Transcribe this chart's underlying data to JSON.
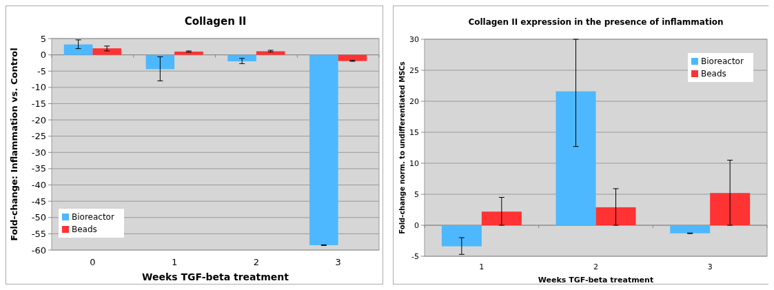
{
  "chart_data": [
    {
      "type": "bar",
      "title": "Collagen II",
      "xlabel": "Weeks TGF-beta treatment",
      "ylabel": "Fold-change: Inflammation vs. Control",
      "categories": [
        "0",
        "1",
        "2",
        "3"
      ],
      "ylim": [
        -60,
        5
      ],
      "yticks": [
        -60,
        -55,
        -50,
        -45,
        -40,
        -35,
        -30,
        -25,
        -20,
        -15,
        -10,
        -5,
        0,
        5
      ],
      "grid": "y",
      "legend": "bottom left",
      "series": [
        {
          "name": "Bioreactor",
          "color": "#4db8ff",
          "values": [
            3.2,
            -4.4,
            -2.0,
            -58.5
          ],
          "errors": [
            [
              1.9,
              4.6
            ],
            [
              -8.0,
              -0.6
            ],
            [
              -2.7,
              -1.1
            ],
            [
              -58.6,
              -58.4
            ]
          ]
        },
        {
          "name": "Beads",
          "color": "#ff3333",
          "values": [
            2.0,
            1.0,
            1.1,
            -1.9
          ],
          "errors": [
            [
              1.2,
              2.7
            ],
            [
              0.8,
              1.2
            ],
            [
              0.9,
              1.4
            ],
            [
              -2.0,
              -1.7
            ]
          ]
        }
      ]
    },
    {
      "type": "bar",
      "title": "Collagen II expression in the presence of inflammation",
      "xlabel": "Weeks TGF-beta treatment",
      "ylabel": "Fold-change norm. to undifferentiated MSCs",
      "categories": [
        "1",
        "2",
        "3"
      ],
      "ylim": [
        -5,
        30
      ],
      "yticks": [
        -5,
        0,
        5,
        10,
        15,
        20,
        25,
        30
      ],
      "grid": "y",
      "legend": "top right",
      "series": [
        {
          "name": "Bioreactor",
          "color": "#4db8ff",
          "values": [
            -3.4,
            21.6,
            -1.3
          ],
          "errors": [
            [
              -4.7,
              -2.0
            ],
            [
              12.7,
              30
            ],
            [
              -1.35,
              -1.25
            ]
          ]
        },
        {
          "name": "Beads",
          "color": "#ff3333",
          "values": [
            2.2,
            2.9,
            5.2
          ],
          "errors": [
            [
              0,
              4.5
            ],
            [
              0,
              5.9
            ],
            [
              0,
              10.5
            ]
          ]
        }
      ]
    }
  ]
}
